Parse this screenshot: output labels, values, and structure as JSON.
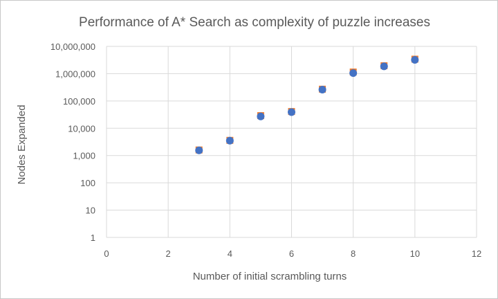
{
  "chart_data": {
    "type": "scatter",
    "title": "Performance of A* Search as complexity of puzzle increases",
    "xlabel": "Number of initial scrambling turns",
    "ylabel": "Nodes Expanded",
    "xlim": [
      0,
      12
    ],
    "ylim": [
      1,
      10000000
    ],
    "yscale": "log",
    "grid": true,
    "x_ticks": [
      "0",
      "2",
      "4",
      "6",
      "8",
      "10",
      "12"
    ],
    "y_ticks": [
      "1",
      "10",
      "100",
      "1,000",
      "10,000",
      "100,000",
      "1,000,000",
      "10,000,000"
    ],
    "series": [
      {
        "color": "#ed7d31",
        "marker": "square",
        "x": [
          3,
          4,
          5,
          6,
          7,
          8,
          9,
          10
        ],
        "y": [
          1600,
          3600,
          29000,
          41000,
          270000,
          1150000,
          1950000,
          3400000
        ]
      },
      {
        "color": "#4472c4",
        "marker": "circle",
        "x": [
          3,
          4,
          5,
          6,
          7,
          8,
          9,
          10
        ],
        "y": [
          1550,
          3500,
          27000,
          39000,
          260000,
          1050000,
          1850000,
          3200000
        ]
      }
    ]
  }
}
